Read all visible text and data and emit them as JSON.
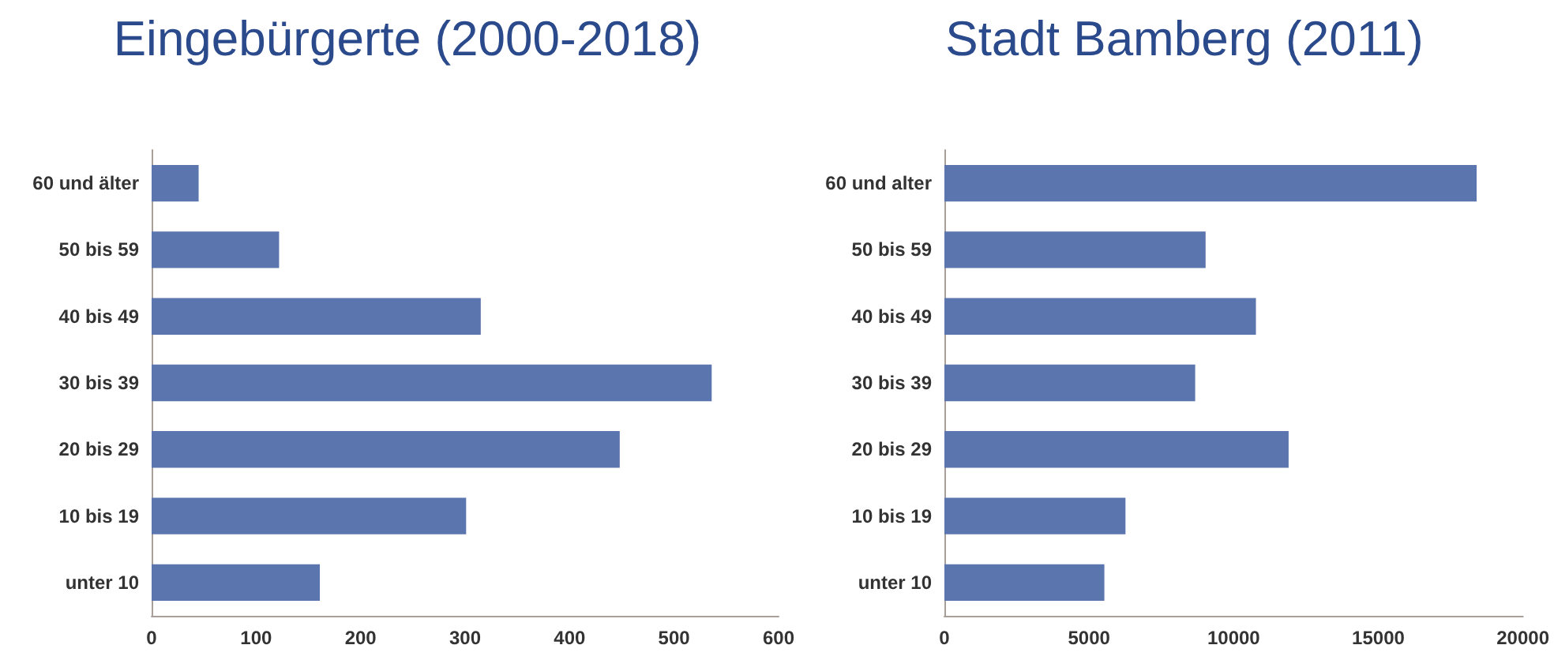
{
  "chart_data": [
    {
      "type": "bar",
      "orientation": "horizontal",
      "title": "Eingebürgerte (2000-2018)",
      "categories": [
        "60 und älter",
        "50 bis 59",
        "40 bis 49",
        "30 bis 39",
        "20 bis 29",
        "10 bis 19",
        "unter 10"
      ],
      "values": [
        45,
        122,
        315,
        536,
        448,
        301,
        161
      ],
      "color": "#5b76ae",
      "xlim": [
        0,
        600
      ],
      "xticks": [
        0,
        100,
        200,
        300,
        400,
        500,
        600
      ],
      "grid": false
    },
    {
      "type": "bar",
      "orientation": "horizontal",
      "title": "Stadt Bamberg (2011)",
      "categories": [
        "60 und alter",
        "50 bis 59",
        "40 bis 49",
        "30 bis 39",
        "20 bis 29",
        "10 bis 19",
        "unter 10"
      ],
      "values": [
        18400,
        9030,
        10770,
        8670,
        11900,
        6260,
        5530
      ],
      "color": "#5b76ae",
      "xlim": [
        0,
        20000
      ],
      "xticks": [
        0,
        5000,
        10000,
        15000,
        20000
      ],
      "grid": false
    }
  ]
}
